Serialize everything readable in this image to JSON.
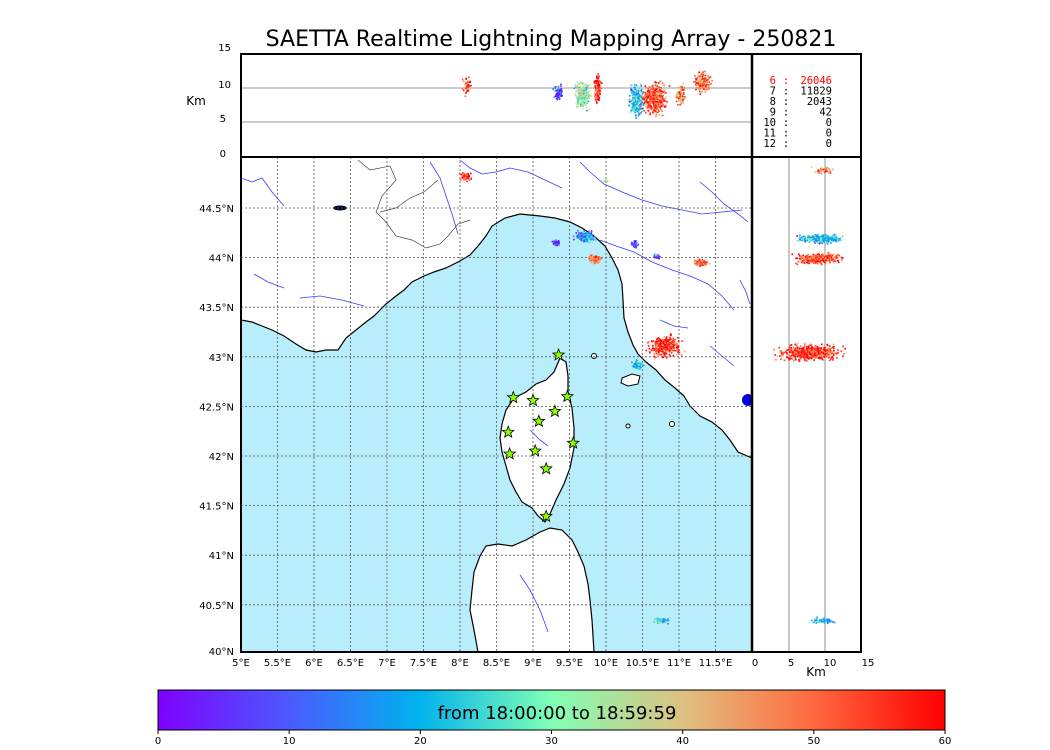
{
  "title": "SAETTA Realtime Lightning Mapping Array - 250821",
  "colors": {
    "sea": "#b8eefc",
    "land": "#ffffff",
    "river": "#3a3aff",
    "grid": "#555555",
    "star_fill": "#8cff00",
    "stat_highlight": "#ff0000"
  },
  "top_panel": {
    "y_label": "Km",
    "y_ticks": [
      "15",
      "10",
      "5",
      "0"
    ]
  },
  "right_panel": {
    "x_label": "Km",
    "x_ticks": [
      "0",
      "5",
      "10",
      "15"
    ]
  },
  "map": {
    "lon_ticks": [
      "5°E",
      "5.5°E",
      "6°E",
      "6.5°E",
      "7°E",
      "7.5°E",
      "8°E",
      "8.5°E",
      "9°E",
      "9.5°E",
      "10°E",
      "10.5°E",
      "11°E",
      "11.5°E"
    ],
    "lat_ticks": [
      "44.5°N",
      "44°N",
      "43.5°N",
      "43°N",
      "42.5°N",
      "42°N",
      "41.5°N",
      "41°N",
      "40.5°N",
      "40°N"
    ],
    "lon_range": [
      5,
      12
    ],
    "lat_range": [
      40,
      45
    ],
    "stations": [
      {
        "lon": 9.35,
        "lat": 43.0
      },
      {
        "lon": 8.73,
        "lat": 42.57
      },
      {
        "lon": 9.0,
        "lat": 42.54
      },
      {
        "lon": 9.47,
        "lat": 42.58
      },
      {
        "lon": 9.3,
        "lat": 42.43
      },
      {
        "lon": 9.08,
        "lat": 42.33
      },
      {
        "lon": 8.66,
        "lat": 42.22
      },
      {
        "lon": 9.55,
        "lat": 42.11
      },
      {
        "lon": 9.03,
        "lat": 42.03
      },
      {
        "lon": 8.68,
        "lat": 42.0
      },
      {
        "lon": 9.18,
        "lat": 41.85
      },
      {
        "lon": 9.18,
        "lat": 41.37
      }
    ]
  },
  "stats": [
    {
      "n": "6",
      "sep": ":",
      "count": "26046",
      "highlight": true
    },
    {
      "n": "7",
      "sep": ":",
      "count": "11829",
      "highlight": false
    },
    {
      "n": "8",
      "sep": ":",
      "count": "2043",
      "highlight": false
    },
    {
      "n": "9",
      "sep": ":",
      "count": "42",
      "highlight": false
    },
    {
      "n": "10",
      "sep": ":",
      "count": "0",
      "highlight": false
    },
    {
      "n": "11",
      "sep": ":",
      "count": "0",
      "highlight": false
    },
    {
      "n": "12",
      "sep": ":",
      "count": "0",
      "highlight": false
    }
  ],
  "colorbar": {
    "label": "from 18:00:00 to 18:59:59",
    "ticks": [
      "0",
      "10",
      "20",
      "30",
      "40",
      "50",
      "60"
    ],
    "range": [
      0,
      60
    ]
  }
}
